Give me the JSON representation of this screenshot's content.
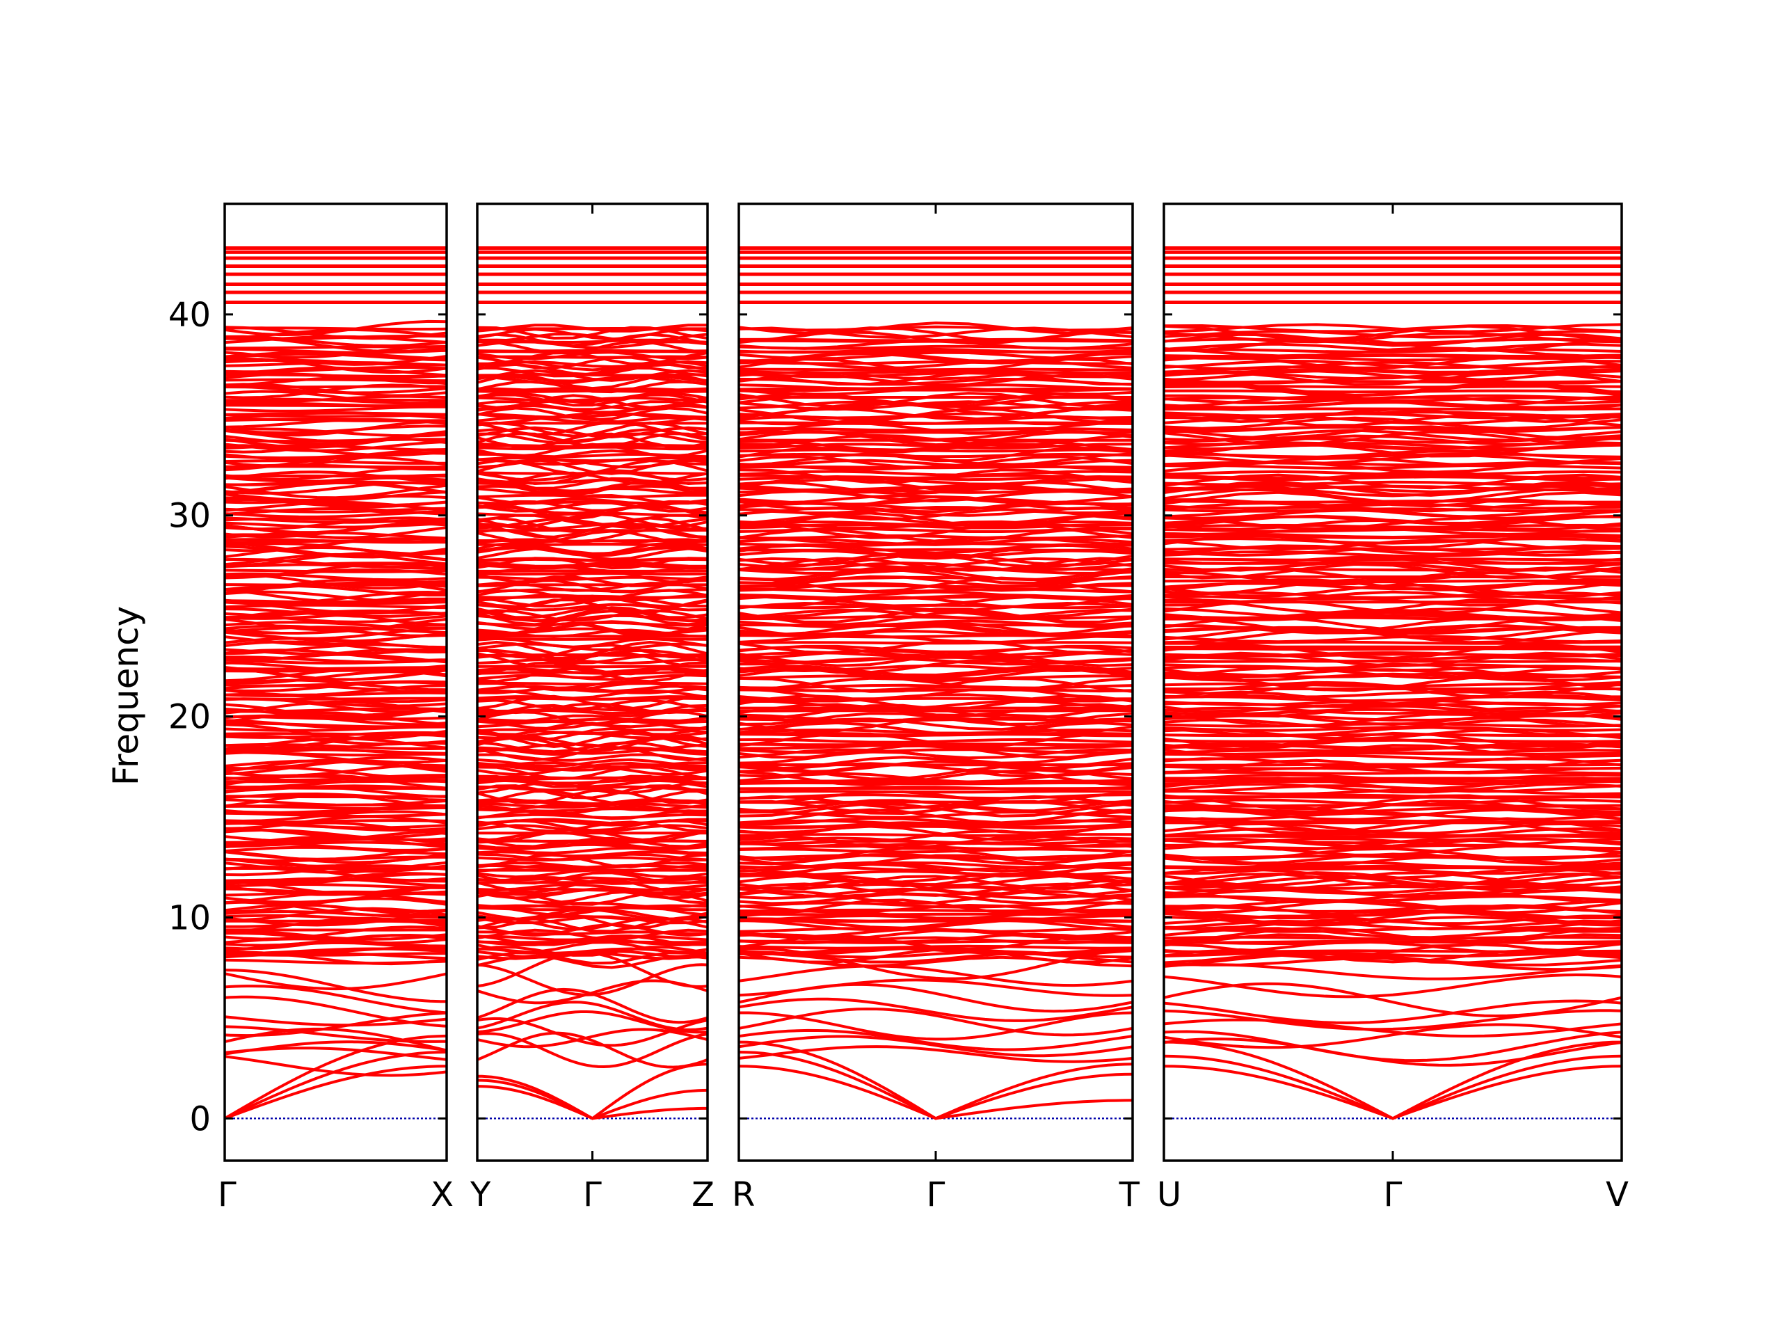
{
  "chart_data": {
    "type": "line",
    "ylabel": "Frequency",
    "ylim": [
      -2.1,
      45.5
    ],
    "yticks": [
      0,
      10,
      20,
      30,
      40
    ],
    "grid": false,
    "legend": "none",
    "colors": {
      "bands": "#ff0000",
      "zero_line": "#0000aa",
      "frame": "#000000"
    },
    "panels": [
      {
        "labels": [
          "Γ",
          "X"
        ],
        "acoustic": [
          {
            "name": "a1",
            "values": [
              0,
              2.6
            ]
          },
          {
            "name": "a2",
            "values": [
              0,
              3.3
            ]
          },
          {
            "name": "a3",
            "values": [
              0,
              4.1
            ]
          }
        ],
        "low_optic": [
          2.7,
          3.1,
          3.3,
          3.6,
          4.2,
          4.7,
          5.0,
          5.3,
          5.9,
          6.6,
          7.2
        ]
      },
      {
        "labels": [
          "Y",
          "Γ",
          "Z"
        ],
        "acoustic": [
          {
            "name": "a1",
            "values": [
              1.6,
              0,
              0.5
            ]
          },
          {
            "name": "a2",
            "values": [
              1.9,
              0,
              1.4
            ]
          },
          {
            "name": "a3",
            "values": [
              2.1,
              0,
              2.7
            ]
          }
        ],
        "low_optic": [
          3.4,
          3.4,
          4.0,
          4.3,
          4.8,
          5.1,
          5.6,
          6.3,
          6.9,
          7.4
        ]
      },
      {
        "labels": [
          "R",
          "Γ",
          "T"
        ],
        "acoustic": [
          {
            "name": "a1",
            "values": [
              2.6,
              0,
              0.9
            ]
          },
          {
            "name": "a2",
            "values": [
              3.3,
              0,
              2.2
            ]
          },
          {
            "name": "a3",
            "values": [
              3.8,
              0,
              2.7
            ]
          }
        ],
        "low_optic": [
          3.6,
          3.2,
          3.9,
          4.6,
          4.8,
          5.4,
          6.0,
          6.5,
          7.1,
          7.7
        ]
      },
      {
        "labels": [
          "U",
          "Γ",
          "V"
        ],
        "acoustic": [
          {
            "name": "a1",
            "values": [
              2.6,
              0,
              2.6
            ]
          },
          {
            "name": "a2",
            "values": [
              3.1,
              0,
              3.1
            ]
          },
          {
            "name": "a3",
            "values": [
              3.8,
              0,
              3.8
            ]
          }
        ],
        "low_optic": [
          3.3,
          3.6,
          4.1,
          4.5,
          4.9,
          5.3,
          5.9,
          6.6,
          7.3,
          7.8
        ]
      }
    ],
    "optical_band_range": [
      2.7,
      43.3
    ],
    "optical_band_count": 260,
    "top_bands": [
      40.6,
      41.1,
      41.5,
      42.0,
      42.4,
      42.8,
      43.1,
      43.3
    ],
    "gap": [
      39.4,
      40.4
    ]
  }
}
